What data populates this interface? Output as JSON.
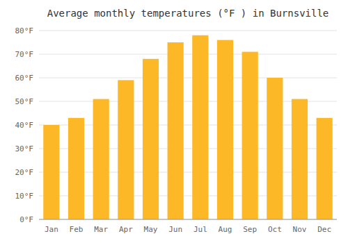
{
  "chart_data": {
    "type": "bar",
    "title": "Average monthly temperatures (°F ) in Burnsville",
    "categories": [
      "Jan",
      "Feb",
      "Mar",
      "Apr",
      "May",
      "Jun",
      "Jul",
      "Aug",
      "Sep",
      "Oct",
      "Nov",
      "Dec"
    ],
    "values": [
      40,
      43,
      51,
      59,
      68,
      75,
      78,
      76,
      71,
      60,
      51,
      43
    ],
    "color": "#fdb827",
    "ylim": [
      0,
      80
    ],
    "yticks": [
      {
        "value": 0,
        "label": "0°F"
      },
      {
        "value": 10,
        "label": "10°F"
      },
      {
        "value": 20,
        "label": "20°F"
      },
      {
        "value": 30,
        "label": "30°F"
      },
      {
        "value": 40,
        "label": "40°F"
      },
      {
        "value": 50,
        "label": "50°F"
      },
      {
        "value": 60,
        "label": "60°F"
      },
      {
        "value": 70,
        "label": "70°F"
      },
      {
        "value": 80,
        "label": "80°F"
      }
    ],
    "grid": true
  }
}
